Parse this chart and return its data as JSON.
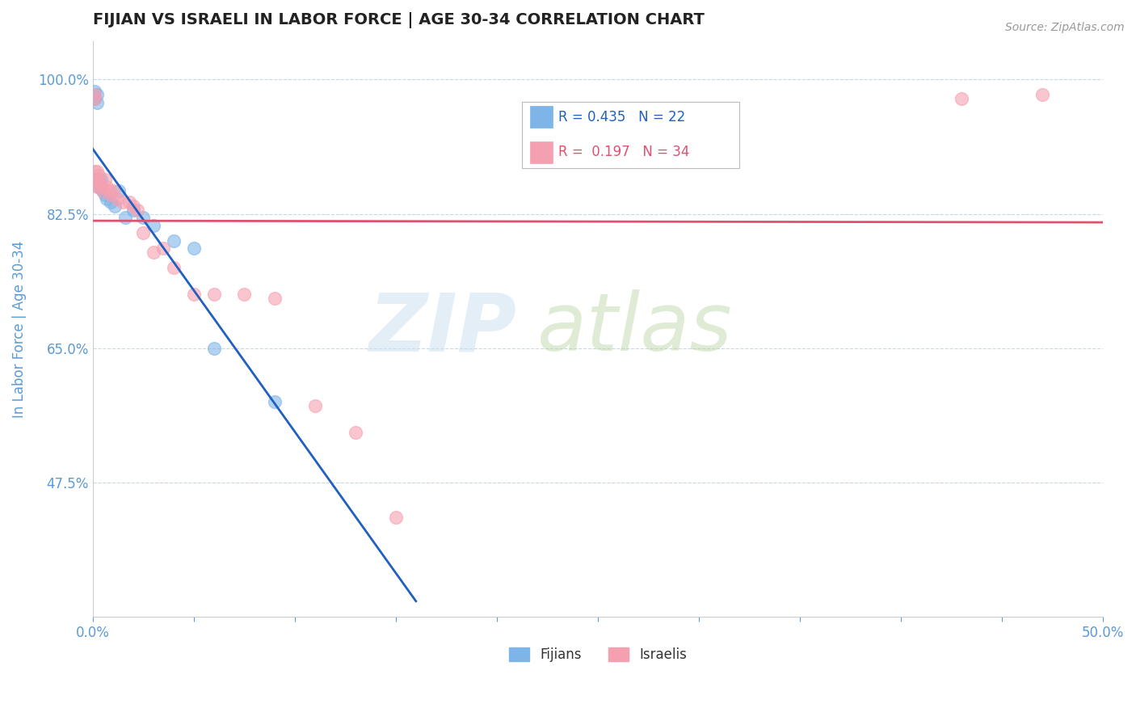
{
  "title": "FIJIAN VS ISRAELI IN LABOR FORCE | AGE 30-34 CORRELATION CHART",
  "source_text": "Source: ZipAtlas.com",
  "ylabel": "In Labor Force | Age 30-34",
  "xlim": [
    0.0,
    0.5
  ],
  "ylim": [
    0.3,
    1.05
  ],
  "yticks": [
    0.475,
    0.65,
    0.825,
    1.0
  ],
  "ytick_labels": [
    "47.5%",
    "65.0%",
    "82.5%",
    "100.0%"
  ],
  "xticks": [
    0.0,
    0.05,
    0.1,
    0.15,
    0.2,
    0.25,
    0.3,
    0.35,
    0.4,
    0.45,
    0.5
  ],
  "xtick_labels": [
    "0.0%",
    "",
    "",
    "",
    "",
    "",
    "",
    "",
    "",
    "",
    "50.0%"
  ],
  "fijian_x": [
    0.001,
    0.001,
    0.002,
    0.002,
    0.003,
    0.003,
    0.004,
    0.004,
    0.005,
    0.006,
    0.007,
    0.009,
    0.011,
    0.013,
    0.016,
    0.02,
    0.025,
    0.03,
    0.04,
    0.05,
    0.06,
    0.09
  ],
  "fijian_y": [
    0.975,
    0.985,
    0.97,
    0.98,
    0.86,
    0.87,
    0.86,
    0.87,
    0.855,
    0.85,
    0.845,
    0.84,
    0.835,
    0.855,
    0.82,
    0.83,
    0.82,
    0.81,
    0.79,
    0.78,
    0.65,
    0.58
  ],
  "israeli_x": [
    0.001,
    0.001,
    0.001,
    0.001,
    0.002,
    0.002,
    0.002,
    0.003,
    0.003,
    0.004,
    0.005,
    0.006,
    0.007,
    0.008,
    0.009,
    0.01,
    0.012,
    0.015,
    0.018,
    0.02,
    0.022,
    0.025,
    0.03,
    0.035,
    0.04,
    0.05,
    0.06,
    0.075,
    0.09,
    0.11,
    0.13,
    0.15,
    0.43,
    0.47
  ],
  "israeli_y": [
    0.975,
    0.98,
    0.87,
    0.88,
    0.86,
    0.87,
    0.88,
    0.865,
    0.875,
    0.86,
    0.855,
    0.87,
    0.86,
    0.855,
    0.85,
    0.855,
    0.845,
    0.84,
    0.84,
    0.835,
    0.83,
    0.8,
    0.775,
    0.78,
    0.755,
    0.72,
    0.72,
    0.72,
    0.715,
    0.575,
    0.54,
    0.43,
    0.975,
    0.98
  ],
  "fijian_color": "#7eb5e8",
  "israeli_color": "#f5a0b0",
  "fijian_line_color": "#2060c0",
  "israeli_line_color": "#e05070",
  "fijian_R": "0.435",
  "fijian_N": "22",
  "israeli_R": "0.197",
  "israeli_N": "34",
  "title_color": "#222222",
  "axis_label_color": "#5b9bd5",
  "tick_color": "#5b9bd5",
  "grid_color": "#c8d8e8",
  "background_color": "#ffffff"
}
